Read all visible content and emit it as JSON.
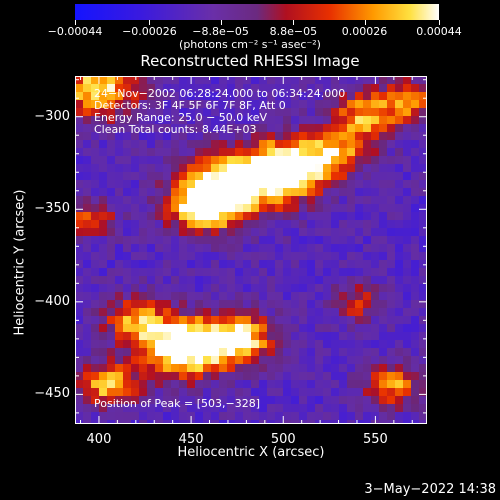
{
  "chart_data": {
    "type": "heatmap",
    "title": "Reconstructed RHESSI Image",
    "xlabel": "Heliocentric X (arcsec)",
    "ylabel": "Heliocentric Y (arcsec)",
    "xlim": [
      387,
      578
    ],
    "ylim": [
      -466,
      -278
    ],
    "x_ticks": [
      400,
      450,
      500,
      550
    ],
    "y_ticks": [
      -300,
      -350,
      -400,
      -450
    ],
    "x_tick_labels": [
      "400",
      "450",
      "500",
      "550"
    ],
    "y_tick_labels": [
      "−300",
      "−350",
      "−400",
      "−450"
    ],
    "colorbar": {
      "range": [
        -0.00044,
        0.00044
      ],
      "ticks": [
        -0.00044,
        -0.00026,
        -8.8e-05,
        8.8e-05,
        0.00026,
        0.00044
      ],
      "tick_labels": [
        "−0.00044",
        "−0.00026",
        "−8.8e−05",
        "8.8e−05",
        "0.00026",
        "0.00044"
      ],
      "units_label": "(photons cm⁻² s⁻¹ asec⁻²)"
    },
    "annotations": {
      "time": "24−Nov−2002 06:28:24.000 to 06:34:24.000",
      "detectors": "Detectors: 3F 4F 5F 6F 7F 8F, Att 0",
      "energy": "Energy Range: 25.0 − 50.0 keV",
      "method": "Clean    Total counts: 8.44E+03",
      "peak": "Position of Peak = [503,−328]"
    },
    "peak_position": [
      503,
      -328
    ]
  },
  "footer": {
    "date": "3−May−2022 14:38"
  },
  "colors": {
    "background": "#000000",
    "low": "#0000ff",
    "mid": "#6a2ca0",
    "high": "#ffffff"
  }
}
